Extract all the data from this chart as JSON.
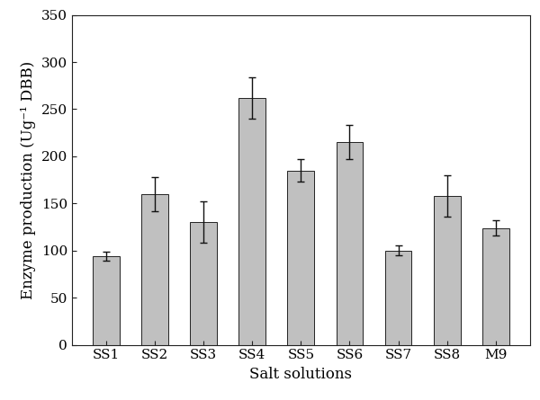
{
  "categories": [
    "SS1",
    "SS2",
    "SS3",
    "SS4",
    "SS5",
    "SS6",
    "SS7",
    "SS8",
    "M9"
  ],
  "values": [
    94,
    160,
    130,
    262,
    185,
    215,
    100,
    158,
    124
  ],
  "errors": [
    5,
    18,
    22,
    22,
    12,
    18,
    5,
    22,
    8
  ],
  "bar_color": "#c0c0c0",
  "bar_edgecolor": "#222222",
  "error_color": "#111111",
  "xlabel": "Salt solutions",
  "ylabel": "Enzyme production (Ug⁻¹ DBB)",
  "ylim": [
    0,
    350
  ],
  "yticks": [
    0,
    50,
    100,
    150,
    200,
    250,
    300,
    350
  ],
  "background_color": "#ffffff",
  "xlabel_fontsize": 12,
  "ylabel_fontsize": 12,
  "tick_fontsize": 11,
  "bar_width": 0.55,
  "font_family": "DejaVu Serif"
}
